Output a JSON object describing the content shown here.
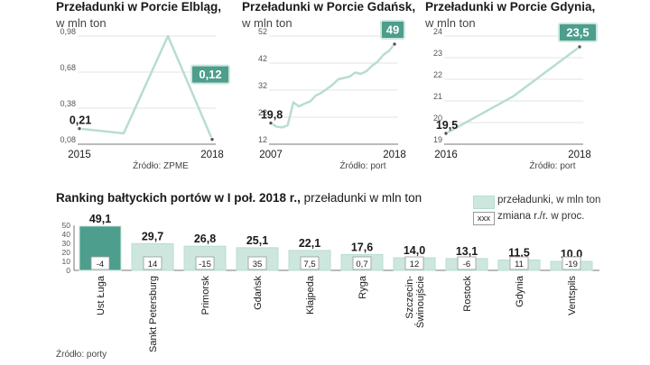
{
  "colors": {
    "accent_dark": "#4d9e8c",
    "accent_light": "#cde7de",
    "line": "#b8ddd0",
    "axis": "#777777",
    "grid": "#e3e3e3",
    "text": "#1a1a1a"
  },
  "chart_data": [
    {
      "type": "line",
      "title": "Przeładunki w Porcie Elbląg,",
      "subtitle": "w mln ton",
      "x": [
        2015,
        2016,
        2017,
        2018
      ],
      "values": [
        0.21,
        0.17,
        0.98,
        0.12
      ],
      "first_label": "0,21",
      "last_label": "0,12",
      "ylim": [
        0.08,
        0.98
      ],
      "yticks": [
        0.08,
        0.38,
        0.68,
        0.98
      ],
      "ytick_labels": [
        "0,08",
        "0,38",
        "0,68",
        "0,98"
      ],
      "xtick_labels": [
        "2015",
        "2018"
      ],
      "source": "Źródło: ZPME"
    },
    {
      "type": "line",
      "title": "Przeładunki w Porcie Gdańsk,",
      "subtitle": "w mln ton",
      "x": [
        2007,
        2007.5,
        2008,
        2008.5,
        2009,
        2009.5,
        2010,
        2010.5,
        2011,
        2011.5,
        2012,
        2012.5,
        2013,
        2013.5,
        2014,
        2014.5,
        2015,
        2015.5,
        2016,
        2016.5,
        2017,
        2017.5,
        2018
      ],
      "values": [
        19.8,
        18.5,
        18.2,
        19,
        27.5,
        26,
        27,
        27.8,
        30,
        31,
        32.5,
        34,
        36,
        36.5,
        37,
        38.5,
        38,
        39,
        41,
        42.5,
        45,
        46.5,
        49
      ],
      "first_label": "19,8",
      "last_label": "49",
      "ylim": [
        12,
        52
      ],
      "yticks": [
        12,
        22,
        32,
        42,
        52
      ],
      "ytick_labels": [
        "12",
        "22",
        "32",
        "42",
        "52"
      ],
      "xtick_labels": [
        "2007",
        "2018"
      ],
      "source": "Źródło: port"
    },
    {
      "type": "line",
      "title": "Przeładunki w Porcie Gdynia,",
      "subtitle": "w mln ton",
      "x": [
        2016,
        2017,
        2018
      ],
      "values": [
        19.5,
        21.2,
        23.5
      ],
      "first_label": "19,5",
      "last_label": "23,5",
      "ylim": [
        19,
        24
      ],
      "yticks": [
        19,
        20,
        21,
        22,
        23,
        24
      ],
      "ytick_labels": [
        "19",
        "20",
        "21",
        "22",
        "23",
        "24"
      ],
      "xtick_labels": [
        "2016",
        "2018"
      ],
      "source": "Źródło: port"
    },
    {
      "type": "bar",
      "title_bold": "Ranking bałtyckich portów w I poł. 2018 r.,",
      "title_rest": " przeładunki w mln ton",
      "categories": [
        "Ust Ługa",
        "Sankt Petersburg",
        "Primorsk",
        "Gdańsk",
        "Kłajpeda",
        "Ryga",
        "Szczecin-\nŚwinoujście",
        "Rostock",
        "Gdynia",
        "Ventspils"
      ],
      "category_lines": [
        [
          "Ust Ługa"
        ],
        [
          "Sankt Petersburg"
        ],
        [
          "Primorsk"
        ],
        [
          "Gdańsk"
        ],
        [
          "Kłajpeda"
        ],
        [
          "Ryga"
        ],
        [
          "Szczecin-",
          "Świnoujście"
        ],
        [
          "Rostock"
        ],
        [
          "Gdynia"
        ],
        [
          "Ventspils"
        ]
      ],
      "values": [
        49.1,
        29.7,
        26.8,
        25.1,
        22.1,
        17.6,
        14.0,
        13.1,
        11.5,
        10.0
      ],
      "value_labels": [
        "49,1",
        "29,7",
        "26,8",
        "25,1",
        "22,1",
        "17,6",
        "14,0",
        "13,1",
        "11,5",
        "10,0"
      ],
      "change_labels": [
        "-4",
        "14",
        "-15",
        "35",
        "7,5",
        "0,7",
        "12",
        "-6",
        "11",
        "-19"
      ],
      "ylim": [
        0,
        50
      ],
      "yticks": [
        0,
        10,
        20,
        30,
        40,
        50
      ],
      "ytick_labels": [
        "0",
        "10",
        "20",
        "30",
        "40",
        "50"
      ],
      "legend": [
        {
          "key": "bar",
          "label": "przeładunki, w mln ton"
        },
        {
          "key": "xxx",
          "swatch_text": "xxx",
          "label": "zmiana r./r. w proc."
        }
      ],
      "source": "Źródło: porty"
    }
  ]
}
